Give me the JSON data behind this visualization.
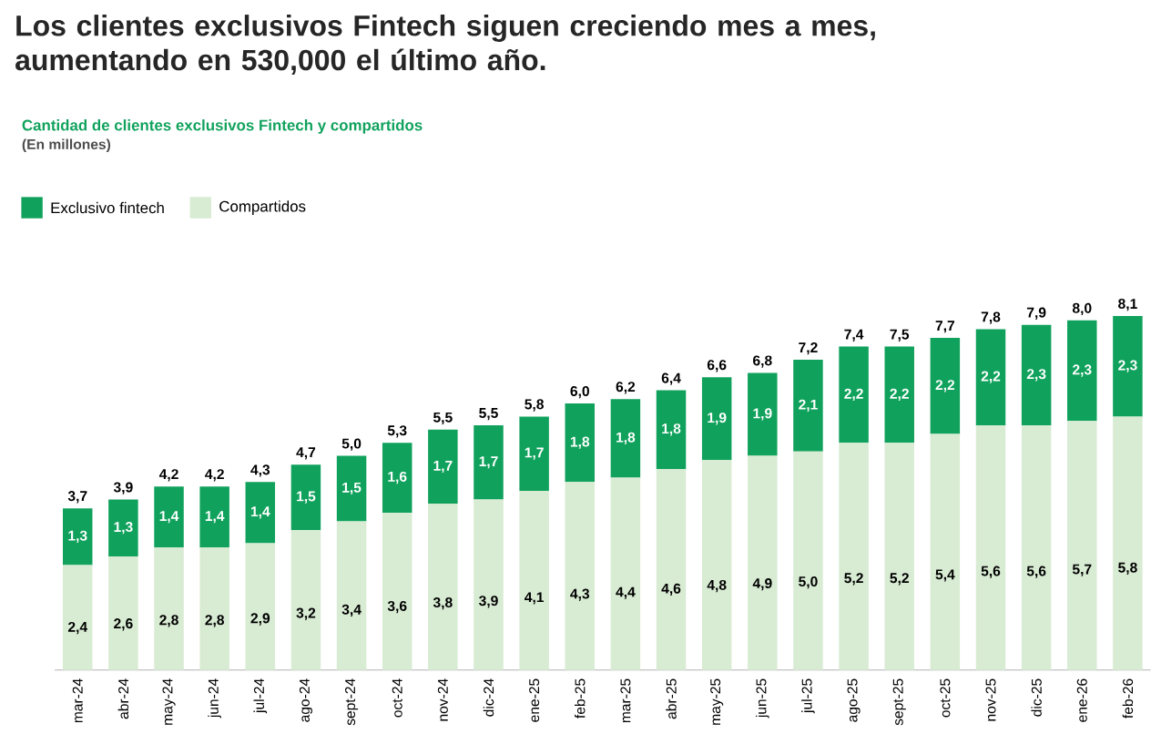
{
  "chart_data": {
    "type": "bar",
    "stacked": true,
    "title": "Los clientes exclusivos Fintech siguen creciendo mes a mes, aumentando en 530,000 el último año.",
    "subtitle": "Cantidad de clientes exclusivos Fintech y compartidos",
    "annotations": [
      "(En millones)"
    ],
    "categories": [
      "mar-24",
      "abr-24",
      "may-24",
      "jun-24",
      "jul-24",
      "ago-24",
      "sept-24",
      "oct-24",
      "nov-24",
      "dic-24",
      "ene-25",
      "feb-25",
      "mar-25",
      "abr-25",
      "may-25",
      "jun-25",
      "jul-25",
      "ago-25",
      "sept-25",
      "oct-25",
      "nov-25",
      "dic-25",
      "ene-26",
      "feb-26"
    ],
    "series": [
      {
        "name": "Compartidos",
        "color": "#d8ebd3",
        "values": [
          2.4,
          2.6,
          2.8,
          2.8,
          2.9,
          3.2,
          3.4,
          3.6,
          3.8,
          3.9,
          4.1,
          4.3,
          4.4,
          4.6,
          4.8,
          4.9,
          5.0,
          5.2,
          5.2,
          5.4,
          5.6,
          5.6,
          5.7,
          5.8
        ],
        "value_labels": [
          "2,4",
          "2,6",
          "2,8",
          "2,8",
          "2,9",
          "3,2",
          "3,4",
          "3,6",
          "3,8",
          "3,9",
          "4,1",
          "4,3",
          "4,4",
          "4,6",
          "4,8",
          "4,9",
          "5,0",
          "5,2",
          "5,2",
          "5,4",
          "5,6",
          "5,6",
          "5,7",
          "5,8"
        ]
      },
      {
        "name": "Exclusivo fintech",
        "color": "#10a25c",
        "values": [
          1.3,
          1.3,
          1.4,
          1.4,
          1.4,
          1.5,
          1.5,
          1.6,
          1.7,
          1.7,
          1.7,
          1.8,
          1.8,
          1.8,
          1.9,
          1.9,
          2.1,
          2.2,
          2.2,
          2.2,
          2.2,
          2.3,
          2.3,
          2.3
        ],
        "value_labels": [
          "1,3",
          "1,3",
          "1,4",
          "1,4",
          "1,4",
          "1,5",
          "1,5",
          "1,6",
          "1,7",
          "1,7",
          "1,7",
          "1,8",
          "1,8",
          "1,8",
          "1,9",
          "1,9",
          "2,1",
          "2,2",
          "2,2",
          "2,2",
          "2,2",
          "2,3",
          "2,3",
          "2,3"
        ]
      }
    ],
    "totals": [
      "3,7",
      "3,9",
      "4,2",
      "4,2",
      "4,3",
      "4,7",
      "5,0",
      "5,3",
      "5,5",
      "5,5",
      "5,8",
      "6,0",
      "6,2",
      "6,4",
      "6,6",
      "6,8",
      "7,2",
      "7,4",
      "7,5",
      "7,7",
      "7,8",
      "7,9",
      "8,0",
      "8,1"
    ],
    "legend": "top left"
  }
}
